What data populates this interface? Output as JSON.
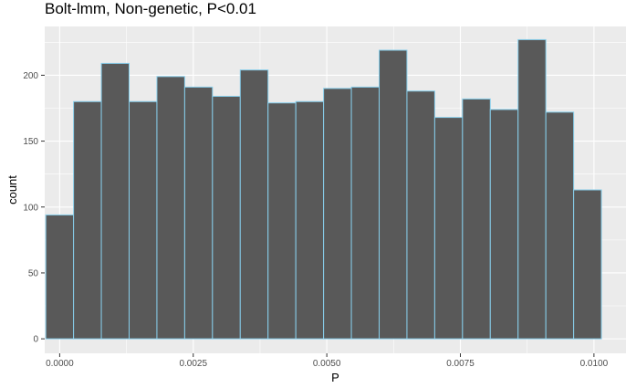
{
  "chart_data": {
    "type": "bar",
    "title": "Bolt-lmm, Non-genetic, P<0.01",
    "xlabel": "P",
    "ylabel": "count",
    "xlim": [
      -0.00028,
      0.0106
    ],
    "ylim": [
      -11,
      237
    ],
    "bin_width": 0.00052,
    "bins": [
      {
        "x0": -0.00026,
        "x1": 0.00026,
        "count": 94
      },
      {
        "x0": 0.00026,
        "x1": 0.00078,
        "count": 180
      },
      {
        "x0": 0.00078,
        "x1": 0.0013,
        "count": 209
      },
      {
        "x0": 0.0013,
        "x1": 0.00182,
        "count": 180
      },
      {
        "x0": 0.00182,
        "x1": 0.00234,
        "count": 199
      },
      {
        "x0": 0.00234,
        "x1": 0.00286,
        "count": 191
      },
      {
        "x0": 0.00286,
        "x1": 0.00338,
        "count": 184
      },
      {
        "x0": 0.00338,
        "x1": 0.0039,
        "count": 204
      },
      {
        "x0": 0.0039,
        "x1": 0.00442,
        "count": 179
      },
      {
        "x0": 0.00442,
        "x1": 0.00494,
        "count": 180
      },
      {
        "x0": 0.00494,
        "x1": 0.00546,
        "count": 190
      },
      {
        "x0": 0.00546,
        "x1": 0.00598,
        "count": 191
      },
      {
        "x0": 0.00598,
        "x1": 0.0065,
        "count": 219
      },
      {
        "x0": 0.0065,
        "x1": 0.00702,
        "count": 188
      },
      {
        "x0": 0.00702,
        "x1": 0.00754,
        "count": 168
      },
      {
        "x0": 0.00754,
        "x1": 0.00806,
        "count": 182
      },
      {
        "x0": 0.00806,
        "x1": 0.00858,
        "count": 174
      },
      {
        "x0": 0.00858,
        "x1": 0.0091,
        "count": 227
      },
      {
        "x0": 0.0091,
        "x1": 0.00962,
        "count": 172
      },
      {
        "x0": 0.00962,
        "x1": 0.01014,
        "count": 113
      }
    ],
    "x_ticks": [
      {
        "value": 0.0,
        "label": "0.0000"
      },
      {
        "value": 0.0025,
        "label": "0.0025"
      },
      {
        "value": 0.005,
        "label": "0.0050"
      },
      {
        "value": 0.0075,
        "label": "0.0075"
      },
      {
        "value": 0.01,
        "label": "0.0100"
      }
    ],
    "y_ticks": [
      {
        "value": 0,
        "label": "0"
      },
      {
        "value": 50,
        "label": "50"
      },
      {
        "value": 100,
        "label": "100"
      },
      {
        "value": 150,
        "label": "150"
      },
      {
        "value": 200,
        "label": "200"
      }
    ],
    "grid": true,
    "colors": {
      "panel_background": "#ebebeb",
      "grid_major": "#ffffff",
      "bar_fill": "#595959",
      "bar_outline": "#87ceeb",
      "tick_label": "#4d4d4d",
      "tick_mark": "#333333"
    }
  }
}
